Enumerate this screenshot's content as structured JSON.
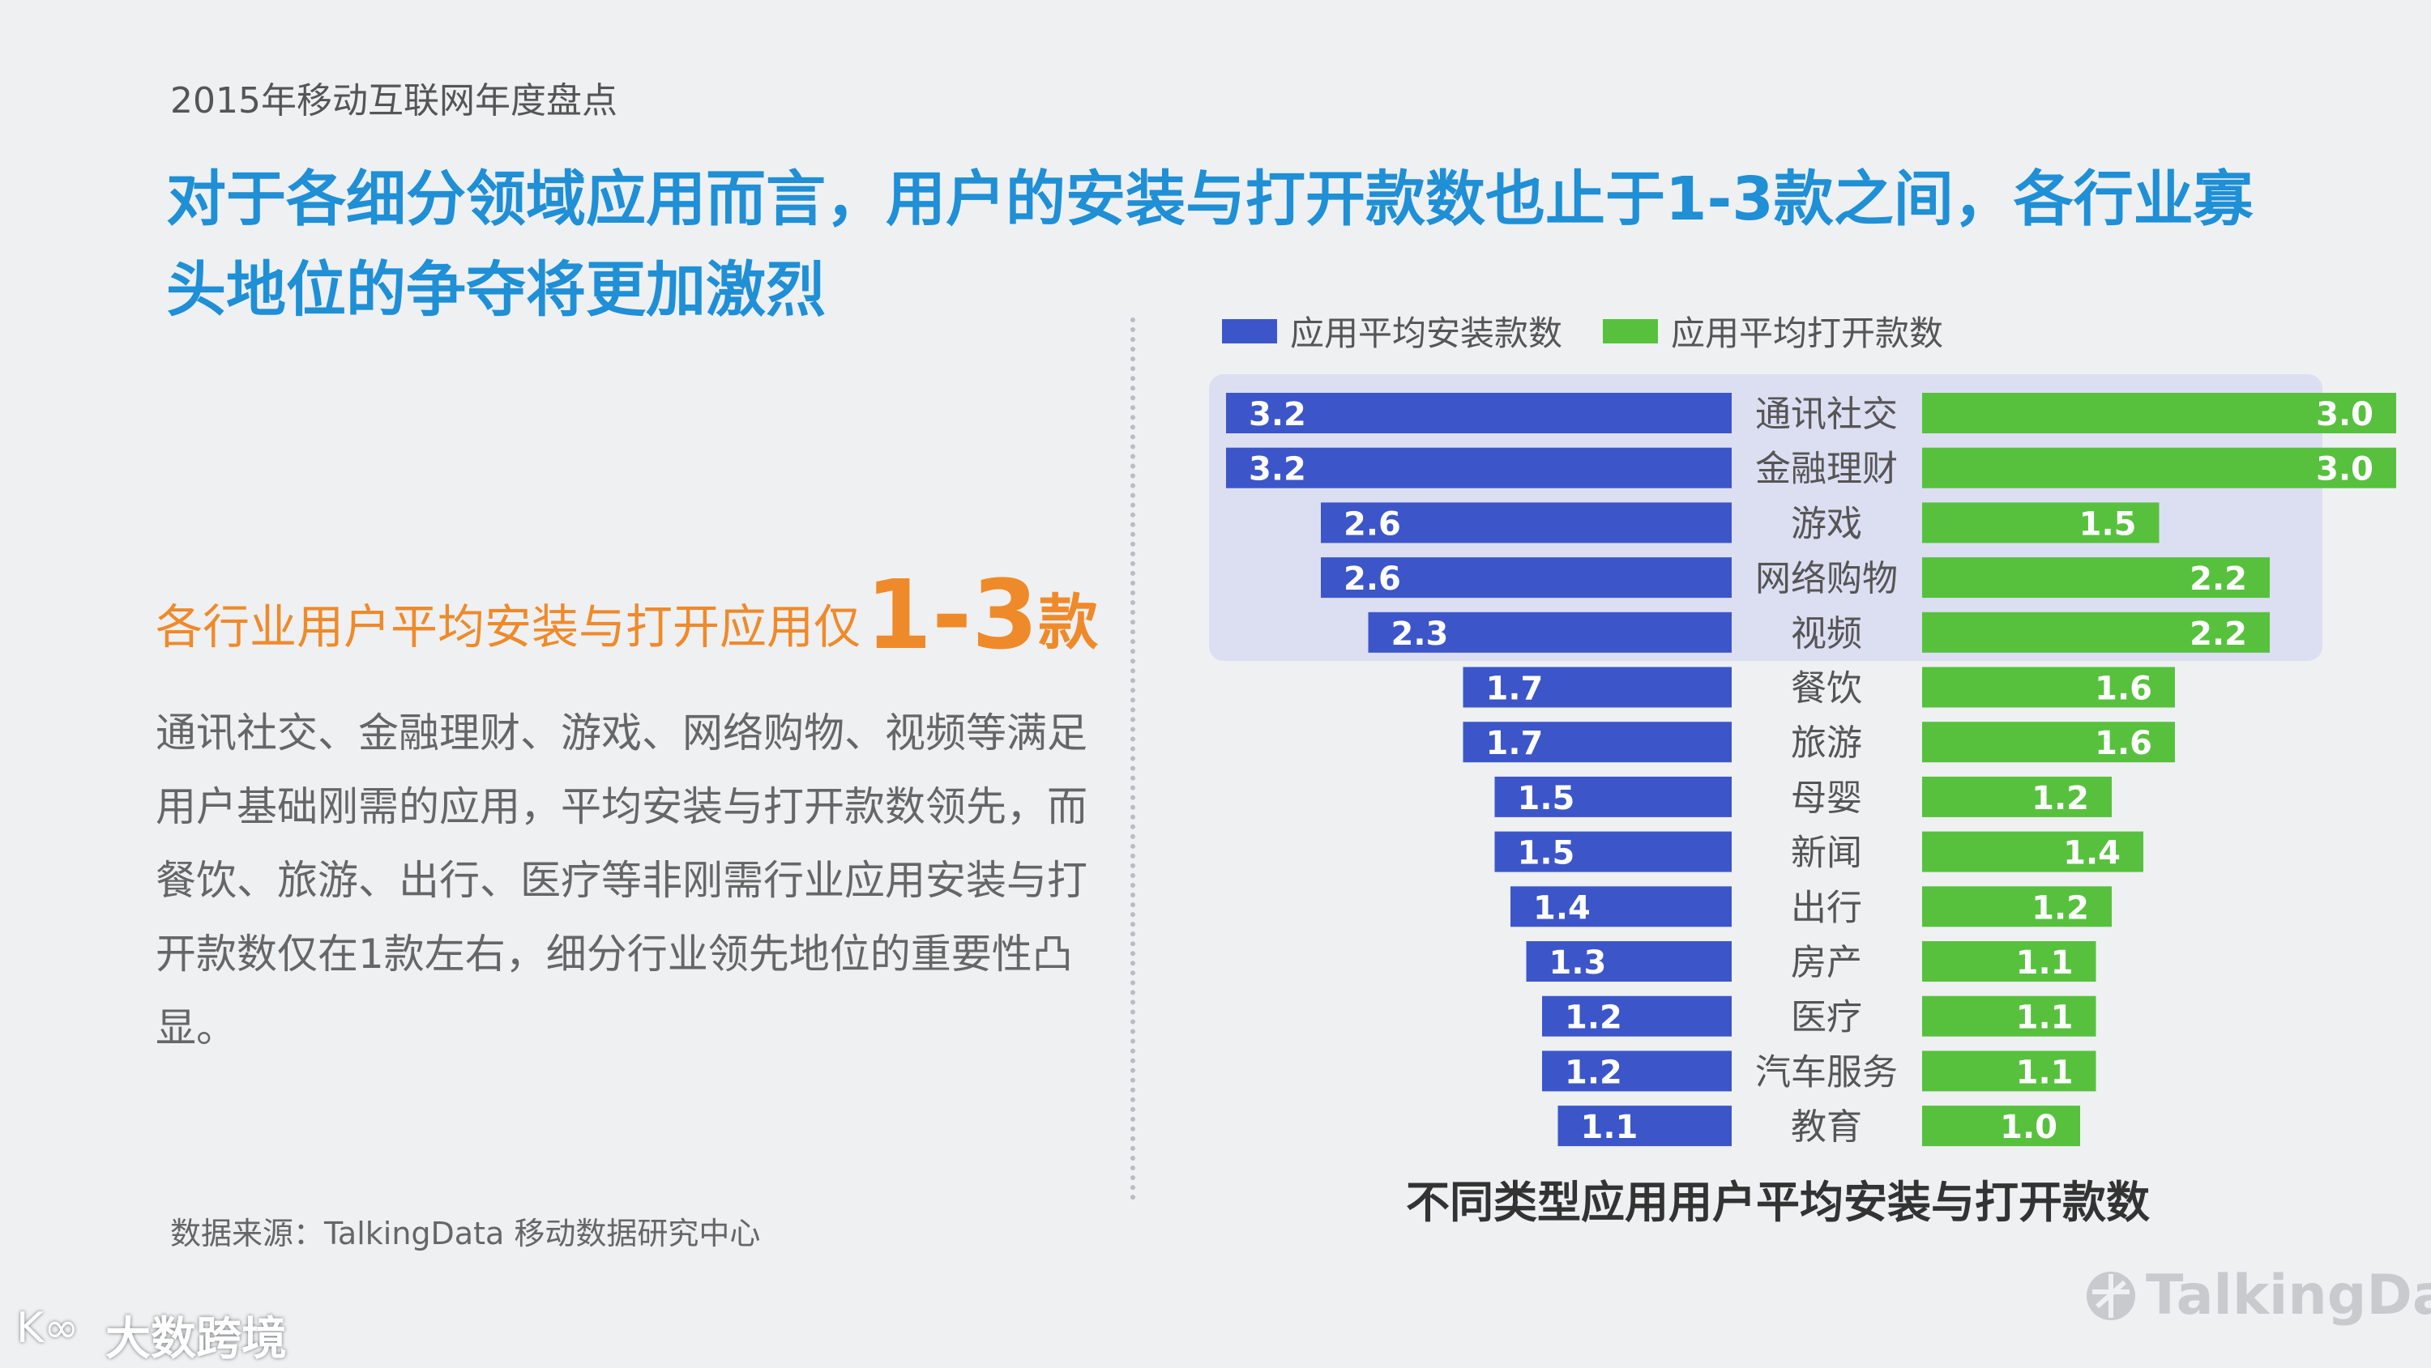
{
  "header": {
    "report_label": "2015年移动互联网年度盘点",
    "headline": "对于各细分领域应用而言，用户的安装与打开款数也止于1-3款之间，各行业寡头地位的争夺将更加激烈"
  },
  "left_panel": {
    "subhead_text": "各行业用户平均安装与打开应用仅",
    "subhead_big": "1-3",
    "subhead_suffix": "款",
    "body": "通讯社交、金融理财、游戏、网络购物、视频等满足用户基础刚需的应用，平均安装与打开款数领先，而餐饮、旅游、出行、医疗等非刚需行业应用安装与打开款数仅在1款左右，细分行业领先地位的重要性凸显。",
    "source": "数据来源：TalkingData 移动数据研究中心"
  },
  "colors": {
    "install": "#3c56c9",
    "open": "#57c13e",
    "highlight": "#dcdef2"
  },
  "chart_data": {
    "type": "bar",
    "orientation": "horizontal-butterfly",
    "title": "不同类型应用用户平均安装与打开款数",
    "categories": [
      "通讯社交",
      "金融理财",
      "游戏",
      "网络购物",
      "视频",
      "餐饮",
      "旅游",
      "母婴",
      "新闻",
      "出行",
      "房产",
      "医疗",
      "汽车服务",
      "教育"
    ],
    "series": [
      {
        "name": "应用平均安装款数",
        "values": [
          3.2,
          3.2,
          2.6,
          2.6,
          2.3,
          1.7,
          1.7,
          1.5,
          1.5,
          1.4,
          1.3,
          1.2,
          1.2,
          1.1
        ]
      },
      {
        "name": "应用平均打开款数",
        "values": [
          3.0,
          3.0,
          1.5,
          2.2,
          2.2,
          1.6,
          1.6,
          1.2,
          1.4,
          1.2,
          1.1,
          1.1,
          1.1,
          1.0
        ]
      }
    ],
    "highlighted_categories": [
      "通讯社交",
      "金融理财",
      "游戏",
      "网络购物",
      "视频"
    ],
    "legend_position": "top"
  },
  "watermark": {
    "site_mark": "K∞",
    "site_name": "大数跨境",
    "brand": "TalkingData"
  }
}
